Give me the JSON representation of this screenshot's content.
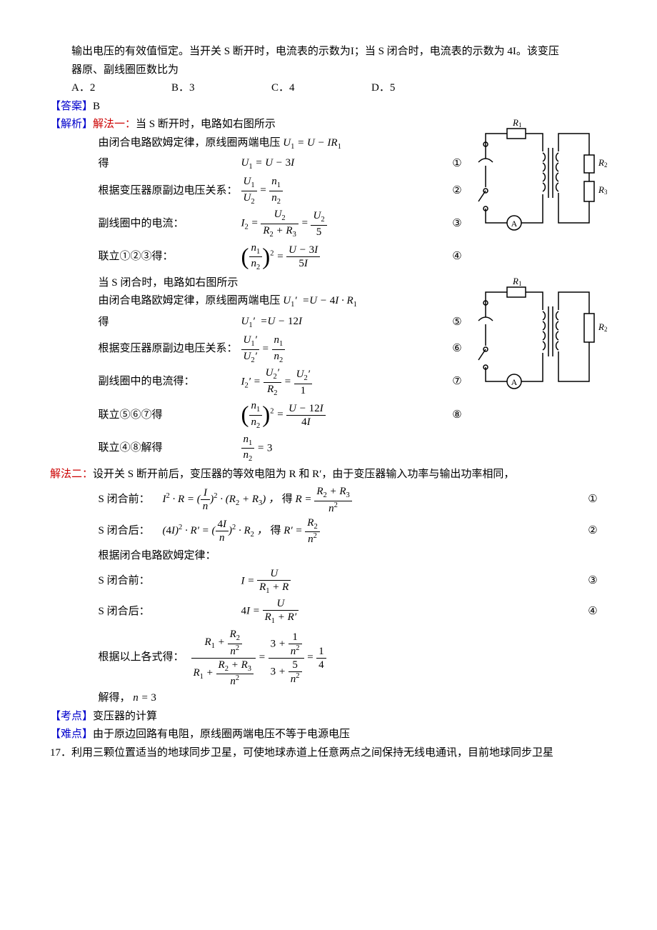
{
  "intro": {
    "l1": "输出电压的有效值恒定。当开关 S 断开时，电流表的示数为I；当 S 闭合时，电流表的示数为 4I。该变压",
    "l2": "器原、副线圈匝数比为"
  },
  "choices": {
    "A": "A．2",
    "B": "B．3",
    "C": "C．4",
    "D": "D．5"
  },
  "answer": {
    "label": "【答案】",
    "val": "B"
  },
  "jiexi": {
    "label": "【解析】",
    "m1": "解法一：",
    "m1_tail": "当 S 断开时，电路如右图所示"
  },
  "steps1": {
    "s1": "由闭合电路欧姆定律，原线圈两端电压",
    "s2_lab": " 得",
    "s3_lab": "根据变压器原副边电压关系：",
    "s4_lab": "副线圈中的电流：",
    "s5_lab": "联立①②③得：",
    "s6": "当 S 闭合时，电路如右图所示",
    "s7": "由闭合电路欧姆定律，原线圈两端电压",
    "s8_lab": "得",
    "s9_lab": "根据变压器原副边电压关系：",
    "s10_lab": "副线圈中的电流得：",
    "s11_lab": "联立⑤⑥⑦得",
    "s12_lab": "联立④⑧解得"
  },
  "nums": {
    "n1": "①",
    "n2": "②",
    "n3": "③",
    "n4": "④",
    "n5": "⑤",
    "n6": "⑥",
    "n7": "⑦",
    "n8": "⑧"
  },
  "method2": {
    "label": "解法二：",
    "intro": "设开关 S 断开前后，变压器的等效电阻为 R 和 R′，由于变压器输入功率与输出功率相同，",
    "r1_lab": "S 闭合前：",
    "r2_lab": "S 闭合后：",
    "r3": "根据闭合电路欧姆定律：",
    "r4_lab": "S 闭合前：",
    "r5_lab": "S 闭合后：",
    "r6_lab": "根据以上各式得：",
    "r7": "解得，"
  },
  "kaodian": {
    "label": "【考点】",
    "val": "变压器的计算"
  },
  "nandian": {
    "label": "【难点】",
    "val": "由于原边回路有电阻，原线圈两端电压不等于电源电压"
  },
  "q17": "17．利用三颗位置适当的地球同步卫星，可使地球赤道上任意两点之间保持无线电通讯，目前地球同步卫星",
  "circuit": {
    "R1": "R",
    "R1s": "1",
    "R2": "R",
    "R2s": "2",
    "R3": "R",
    "R3s": "3",
    "A": "A",
    "stroke": "#000000",
    "stroke_width": 1.5
  }
}
